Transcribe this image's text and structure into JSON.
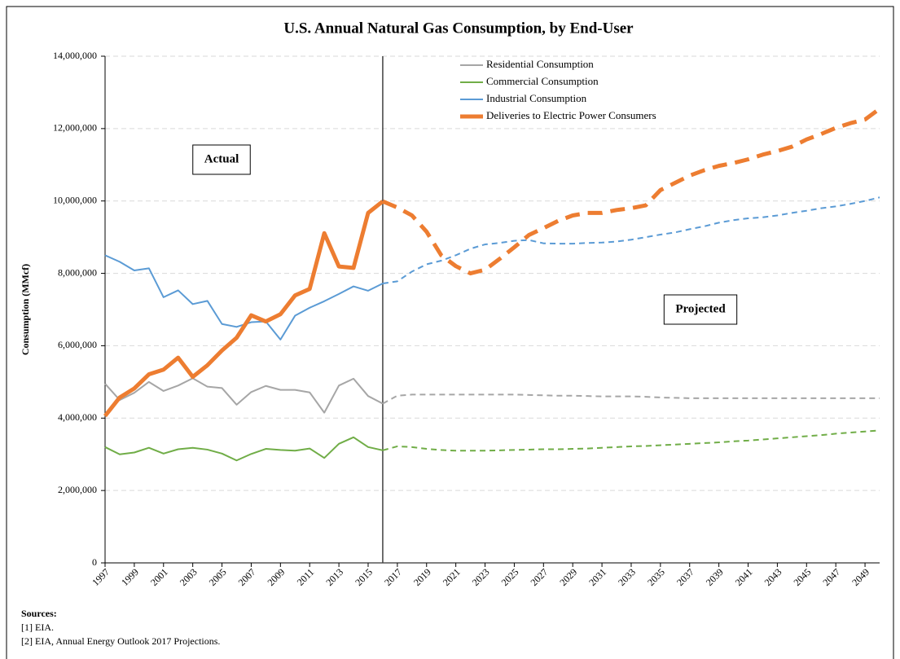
{
  "chart_data": {
    "type": "line",
    "title": "U.S. Annual Natural Gas Consumption, by End-User",
    "y_label": "Consumption  (MMcf)",
    "x": [
      1997,
      1998,
      1999,
      2000,
      2001,
      2002,
      2003,
      2004,
      2005,
      2006,
      2007,
      2008,
      2009,
      2010,
      2011,
      2012,
      2013,
      2014,
      2015,
      2016,
      2017,
      2018,
      2019,
      2020,
      2021,
      2022,
      2023,
      2024,
      2025,
      2026,
      2027,
      2028,
      2029,
      2030,
      2031,
      2032,
      2033,
      2034,
      2035,
      2036,
      2037,
      2038,
      2039,
      2040,
      2041,
      2042,
      2043,
      2044,
      2045,
      2046,
      2047,
      2048,
      2049,
      2050
    ],
    "xlim": [
      1997,
      2050
    ],
    "xticks": [
      1997,
      1999,
      2001,
      2003,
      2005,
      2007,
      2009,
      2011,
      2013,
      2015,
      2017,
      2019,
      2021,
      2023,
      2025,
      2027,
      2029,
      2031,
      2033,
      2035,
      2037,
      2039,
      2041,
      2043,
      2045,
      2047,
      2049
    ],
    "ylim": [
      0,
      14000000
    ],
    "yticks": [
      {
        "value": 0,
        "label": "0"
      },
      {
        "value": 2000000,
        "label": "2,000,000"
      },
      {
        "value": 4000000,
        "label": "4,000,000"
      },
      {
        "value": 6000000,
        "label": "6,000,000"
      },
      {
        "value": 8000000,
        "label": "8,000,000"
      },
      {
        "value": 10000000,
        "label": "10,000,000"
      },
      {
        "value": 12000000,
        "label": "12,000,000"
      },
      {
        "value": 14000000,
        "label": "14,000,000"
      }
    ],
    "grid": true,
    "legend": "top",
    "divider": 2016,
    "annotations": [
      "Actual",
      "Projected"
    ],
    "series": [
      {
        "name": "Residential Consumption",
        "color": "#a6a6a6",
        "line_width": 2,
        "values": [
          4950000,
          4500000,
          4700000,
          5000000,
          4750000,
          4900000,
          5100000,
          4870000,
          4830000,
          4370000,
          4720000,
          4890000,
          4780000,
          4780000,
          4710000,
          4150000,
          4900000,
          5090000,
          4610000,
          4400000,
          4620000,
          4650000,
          4650000,
          4650000,
          4650000,
          4650000,
          4650000,
          4650000,
          4650000,
          4640000,
          4630000,
          4620000,
          4620000,
          4610000,
          4600000,
          4600000,
          4600000,
          4590000,
          4570000,
          4560000,
          4550000,
          4550000,
          4550000,
          4550000,
          4550000,
          4550000,
          4550000,
          4550000,
          4550000,
          4550000,
          4550000,
          4550000,
          4550000,
          4550000
        ]
      },
      {
        "name": "Commercial Consumption",
        "color": "#70ad47",
        "line_width": 2,
        "values": [
          3200000,
          3000000,
          3050000,
          3180000,
          3020000,
          3140000,
          3180000,
          3130000,
          3020000,
          2830000,
          3010000,
          3150000,
          3120000,
          3100000,
          3160000,
          2900000,
          3290000,
          3470000,
          3200000,
          3110000,
          3220000,
          3200000,
          3150000,
          3120000,
          3100000,
          3100000,
          3100000,
          3110000,
          3120000,
          3130000,
          3140000,
          3140000,
          3150000,
          3160000,
          3180000,
          3200000,
          3220000,
          3230000,
          3250000,
          3270000,
          3290000,
          3310000,
          3330000,
          3360000,
          3380000,
          3410000,
          3440000,
          3470000,
          3500000,
          3530000,
          3570000,
          3600000,
          3630000,
          3660000
        ]
      },
      {
        "name": "Industrial Consumption",
        "color": "#5b9bd5",
        "line_width": 2,
        "values": [
          8500000,
          8320000,
          8080000,
          8140000,
          7340000,
          7530000,
          7150000,
          7240000,
          6600000,
          6520000,
          6650000,
          6670000,
          6170000,
          6830000,
          7050000,
          7230000,
          7430000,
          7640000,
          7520000,
          7720000,
          7780000,
          8050000,
          8250000,
          8350000,
          8500000,
          8680000,
          8800000,
          8840000,
          8900000,
          8920000,
          8830000,
          8820000,
          8820000,
          8840000,
          8850000,
          8880000,
          8930000,
          9000000,
          9070000,
          9130000,
          9220000,
          9300000,
          9400000,
          9470000,
          9520000,
          9550000,
          9600000,
          9670000,
          9730000,
          9800000,
          9850000,
          9920000,
          10000000,
          10100000
        ]
      },
      {
        "name": "Deliveries to Electric Power Consumers",
        "color": "#ed7d31",
        "line_width": 5,
        "values": [
          4060000,
          4570000,
          4820000,
          5210000,
          5340000,
          5670000,
          5140000,
          5460000,
          5870000,
          6220000,
          6840000,
          6670000,
          6870000,
          7390000,
          7570000,
          9110000,
          8190000,
          8150000,
          9670000,
          9990000,
          9820000,
          9600000,
          9150000,
          8500000,
          8200000,
          8000000,
          8100000,
          8400000,
          8720000,
          9060000,
          9250000,
          9450000,
          9600000,
          9670000,
          9670000,
          9750000,
          9800000,
          9880000,
          10300000,
          10500000,
          10700000,
          10850000,
          10970000,
          11050000,
          11150000,
          11280000,
          11380000,
          11500000,
          11700000,
          11850000,
          12020000,
          12150000,
          12250000,
          12550000
        ]
      }
    ]
  },
  "sources": {
    "heading": "Sources:",
    "items": [
      "[1] EIA.",
      "[2] EIA, Annual Energy Outlook 2017 Projections."
    ]
  }
}
